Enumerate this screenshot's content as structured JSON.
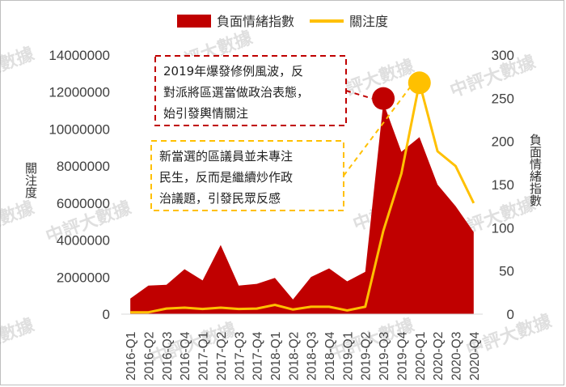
{
  "chart_data": {
    "type": "area+line",
    "categories": [
      "2016-Q1",
      "2016-Q2",
      "2016-Q3",
      "2016-Q4",
      "2017-Q1",
      "2017-Q2",
      "2017-Q3",
      "2017-Q4",
      "2018-Q1",
      "2018-Q2",
      "2018-Q3",
      "2018-Q4",
      "2019-Q1",
      "2019-Q2",
      "2019-Q3",
      "2019-Q4",
      "2020-Q1",
      "2020-Q2",
      "2020-Q3",
      "2020-Q4"
    ],
    "series": [
      {
        "name": "負面情緒指數",
        "kind": "area",
        "axis": "right",
        "color": "#c00000",
        "values": [
          18,
          33,
          34,
          52,
          39,
          80,
          33,
          35,
          42,
          17,
          43,
          53,
          38,
          49,
          245,
          188,
          205,
          150,
          125,
          95
        ]
      },
      {
        "name": "關注度",
        "kind": "line",
        "axis": "left",
        "color": "#ffc000",
        "values": [
          100000,
          100000,
          300000,
          350000,
          280000,
          350000,
          280000,
          300000,
          500000,
          250000,
          400000,
          400000,
          200000,
          400000,
          4500000,
          7600000,
          12500000,
          8800000,
          8000000,
          6000000
        ]
      }
    ],
    "y_left": {
      "label": "關注度",
      "ylim": [
        0,
        14000000
      ],
      "ticks": [
        "0",
        "2000000",
        "4000000",
        "6000000",
        "8000000",
        "10000000",
        "12000000",
        "14000000"
      ]
    },
    "y_right": {
      "label": "負面情緒指數",
      "ylim": [
        0,
        300
      ],
      "ticks": [
        "0",
        "50",
        "100",
        "150",
        "200",
        "250",
        "300"
      ]
    },
    "legend": {
      "position": "top",
      "items": [
        "負面情緒指數",
        "關注度"
      ]
    },
    "highlights": [
      {
        "series": "負面情緒指數",
        "category": "2019-Q3",
        "color": "#c00000"
      },
      {
        "series": "關注度",
        "category": "2020-Q1",
        "color": "#ffc000"
      }
    ],
    "annotations": [
      {
        "lines": [
          "2019年爆發修例風波，反",
          "對派將區選當做政治表態，",
          "始引發輿情關注"
        ],
        "border_color": "#c00000",
        "style": "dashed"
      },
      {
        "lines": [
          "新當選的區議員並未專注",
          "民生，反而是繼續炒作政",
          "治議題，引發民眾反感"
        ],
        "border_color": "#ffc000",
        "style": "dashed"
      }
    ],
    "grid": false
  },
  "watermark": "中評大數據"
}
